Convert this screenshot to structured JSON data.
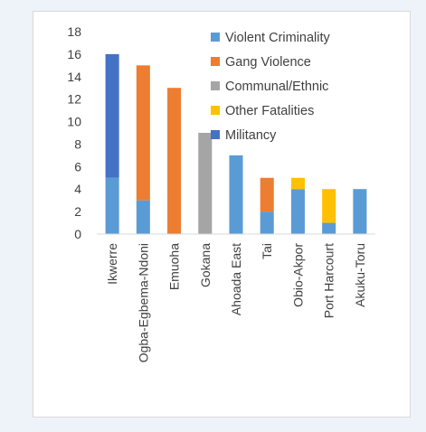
{
  "chart_data": {
    "type": "bar",
    "stacked": true,
    "categories": [
      "Ikwerre",
      "Ogba-Egbema-Ndoni",
      "Emuoha",
      "Gokana",
      "Ahoada East",
      "Tai",
      "Obio-Akpor",
      "Port Harcourt",
      "Akuku-Toru"
    ],
    "series": [
      {
        "name": "Violent Criminality",
        "color": "#5b9bd5",
        "values": [
          5,
          3,
          0,
          0,
          7,
          2,
          4,
          1,
          4
        ]
      },
      {
        "name": "Gang Violence",
        "color": "#ed7d31",
        "values": [
          0,
          12,
          13,
          0,
          0,
          3,
          0,
          0,
          0
        ]
      },
      {
        "name": "Communal/Ethnic",
        "color": "#a5a5a5",
        "values": [
          0,
          0,
          0,
          9,
          0,
          0,
          0,
          0,
          0
        ]
      },
      {
        "name": "Other Fatalities",
        "color": "#ffc000",
        "values": [
          0,
          0,
          0,
          0,
          0,
          0,
          1,
          3,
          0
        ]
      },
      {
        "name": "Militancy",
        "color": "#4472c4",
        "values": [
          11,
          0,
          0,
          0,
          0,
          0,
          0,
          0,
          0
        ]
      }
    ],
    "ylim": [
      0,
      18
    ],
    "yticks": [
      0,
      2,
      4,
      6,
      8,
      10,
      12,
      14,
      16,
      18
    ],
    "grid": false,
    "legend_position": "top-right"
  }
}
